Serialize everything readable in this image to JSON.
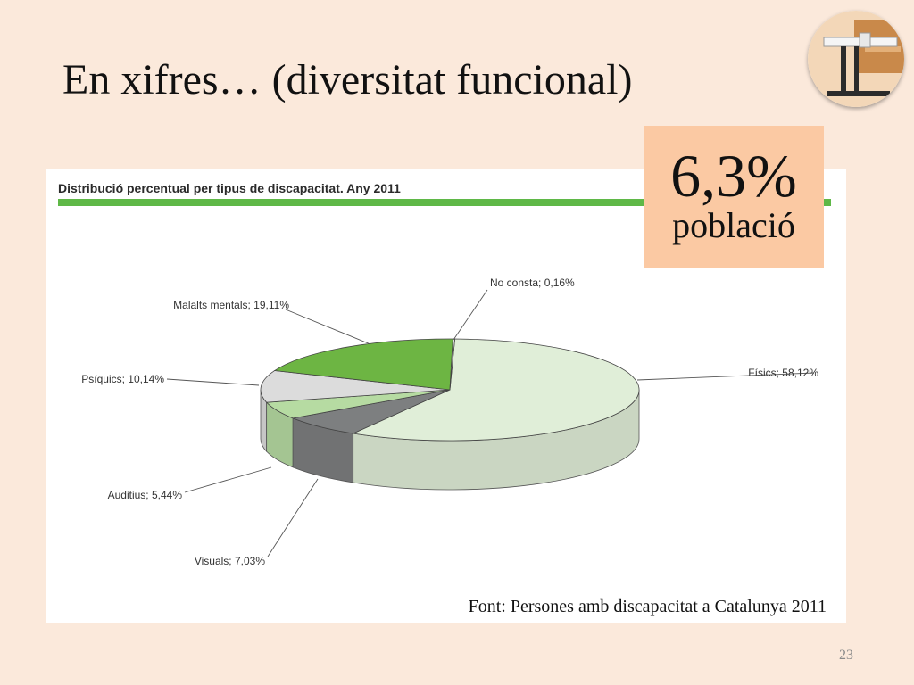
{
  "slide": {
    "title": "En xifres… (diversitat funcional)",
    "page_number": "23"
  },
  "logo": {
    "icon": "lectern-icon"
  },
  "stat": {
    "value": "6,3%",
    "label": "població"
  },
  "source": "Font: Persones amb discapacitat a Catalunya 2011",
  "colors": {
    "background": "#fbe9db",
    "accent_bar": "#5fb847",
    "stat_box": "#fbc9a3"
  },
  "chart_data": {
    "type": "pie",
    "title": "Distribució percentual per tipus de discapacitat. Any 2011",
    "style": "3d",
    "slices": [
      {
        "label": "Físics; 58,12%",
        "value": 58.12,
        "color": "#e0eed8"
      },
      {
        "label": "Visuals; 7,03%",
        "value": 7.03,
        "color": "#7d7f80"
      },
      {
        "label": "Auditius; 5,44%",
        "value": 5.44,
        "color": "#b6dba2"
      },
      {
        "label": "Psíquics; 10,14%",
        "value": 10.14,
        "color": "#dcdcdc"
      },
      {
        "label": "Malalts mentals; 19,11%",
        "value": 19.11,
        "color": "#6db543"
      },
      {
        "label": "No consta; 0,16%",
        "value": 0.16,
        "color": "#ececec"
      }
    ]
  }
}
